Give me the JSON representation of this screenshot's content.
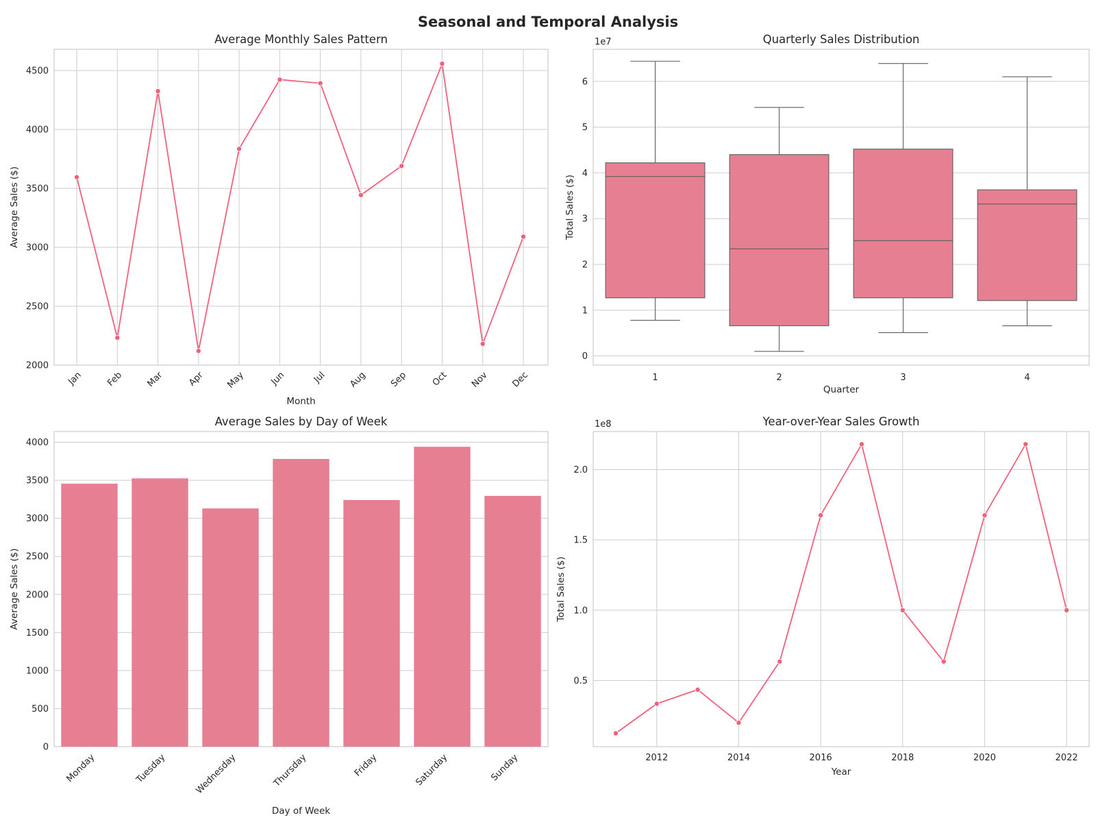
{
  "suptitle": "Seasonal and Temporal Analysis",
  "colors": {
    "line": "#f2607a",
    "fill": "#e67f91",
    "box_edge": "#5e5e5e",
    "grid": "#cccccc"
  },
  "chart_data": [
    {
      "id": "monthly",
      "type": "line",
      "title": "Average Monthly Sales Pattern",
      "xlabel": "Month",
      "ylabel": "Average Sales ($)",
      "categories": [
        "Jan",
        "Feb",
        "Mar",
        "Apr",
        "May",
        "Jun",
        "Jul",
        "Aug",
        "Sep",
        "Oct",
        "Nov",
        "Dec"
      ],
      "values": [
        3595,
        2232,
        4325,
        2120,
        3835,
        4423,
        4392,
        3443,
        3690,
        4558,
        2180,
        3090
      ],
      "ylim": [
        2000,
        4680
      ],
      "yticks": [
        2000,
        2500,
        3000,
        3500,
        4000,
        4500
      ],
      "ytick_labels": [
        "2000",
        "2500",
        "3000",
        "3500",
        "4000",
        "4500"
      ],
      "grid": true,
      "xtick_rotation": 45
    },
    {
      "id": "quarterly",
      "type": "box",
      "title": "Quarterly Sales Distribution",
      "xlabel": "Quarter",
      "ylabel": "Total Sales ($)",
      "offset_label": "1e7",
      "categories": [
        "1",
        "2",
        "3",
        "4"
      ],
      "boxes": [
        {
          "whislo": 7.8,
          "q1": 12.7,
          "med": 39.2,
          "q3": 42.2,
          "whishi": 64.4
        },
        {
          "whislo": 1.0,
          "q1": 6.6,
          "med": 23.4,
          "q3": 44.0,
          "whishi": 54.3
        },
        {
          "whislo": 5.1,
          "q1": 12.7,
          "med": 25.2,
          "q3": 45.2,
          "whishi": 63.9
        },
        {
          "whislo": 6.6,
          "q1": 12.1,
          "med": 33.2,
          "q3": 36.3,
          "whishi": 61.0
        }
      ],
      "value_unit": "millions",
      "ylim": [
        -2,
        67
      ],
      "yticks": [
        0,
        10,
        20,
        30,
        40,
        50,
        60
      ],
      "ytick_labels": [
        "0",
        "1",
        "2",
        "3",
        "4",
        "5",
        "6"
      ],
      "grid": true
    },
    {
      "id": "weekday",
      "type": "bar",
      "title": "Average Sales by Day of Week",
      "xlabel": "Day of Week",
      "ylabel": "Average Sales ($)",
      "categories": [
        "Monday",
        "Tuesday",
        "Wednesday",
        "Thursday",
        "Friday",
        "Saturday",
        "Sunday"
      ],
      "values": [
        3455,
        3525,
        3130,
        3780,
        3240,
        3940,
        3295
      ],
      "ylim": [
        0,
        4140
      ],
      "yticks": [
        0,
        500,
        1000,
        1500,
        2000,
        2500,
        3000,
        3500,
        4000
      ],
      "ytick_labels": [
        "0",
        "500",
        "1000",
        "1500",
        "2000",
        "2500",
        "3000",
        "3500",
        "4000"
      ],
      "grid": true,
      "xtick_rotation": 45
    },
    {
      "id": "yearly",
      "type": "line",
      "title": "Year-over-Year Sales Growth",
      "xlabel": "Year",
      "ylabel": "Total Sales ($)",
      "offset_label": "1e8",
      "x": [
        2011,
        2012,
        2013,
        2014,
        2015,
        2016,
        2017,
        2018,
        2019,
        2020,
        2021,
        2022
      ],
      "values": [
        0.125,
        0.335,
        0.435,
        0.2,
        0.635,
        1.675,
        2.18,
        1.0,
        0.635,
        1.675,
        2.18,
        1.0
      ],
      "xlim": [
        2010.45,
        2022.55
      ],
      "ylim": [
        0.03,
        2.27
      ],
      "xticks": [
        2012,
        2014,
        2016,
        2018,
        2020,
        2022
      ],
      "xgrid": [
        2012,
        2014,
        2016,
        2018,
        2020,
        2022
      ],
      "yticks": [
        0.5,
        1.0,
        1.5,
        2.0
      ],
      "ytick_labels": [
        "0.5",
        "1.0",
        "1.5",
        "2.0"
      ],
      "grid": true
    }
  ]
}
